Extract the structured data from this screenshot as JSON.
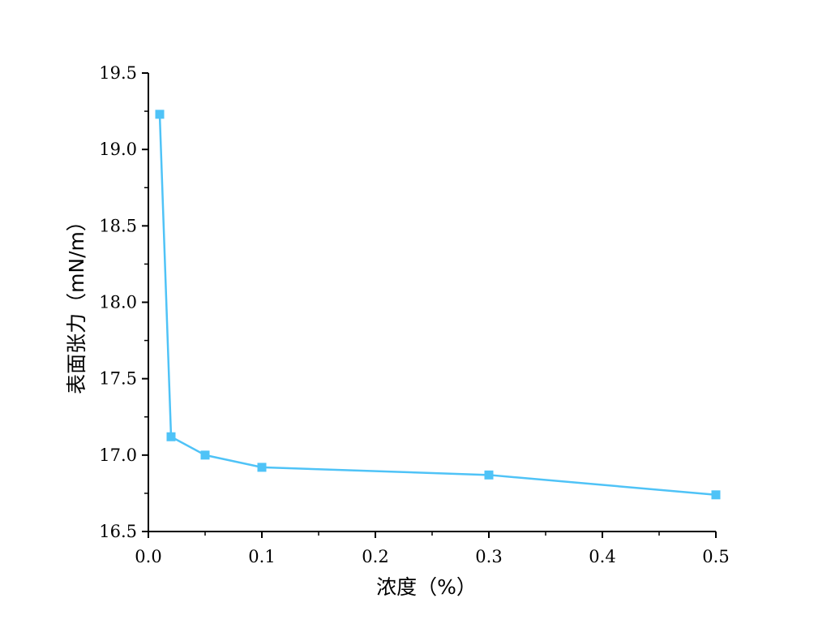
{
  "chart_data": {
    "type": "line",
    "xlabel": "浓度（%）",
    "ylabel": "表面张力（mN/m）",
    "xlim": [
      0.0,
      0.5
    ],
    "ylim": [
      16.5,
      19.5
    ],
    "x_ticks": [
      0.0,
      0.1,
      0.2,
      0.3,
      0.4,
      0.5
    ],
    "x_tick_labels": [
      "0.0",
      "0.1",
      "0.2",
      "0.3",
      "0.4",
      "0.5"
    ],
    "y_ticks": [
      16.5,
      17.0,
      17.5,
      18.0,
      18.5,
      19.0,
      19.5
    ],
    "y_tick_labels": [
      "16.5",
      "17.0",
      "17.5",
      "18.0",
      "18.5",
      "19.0",
      "19.5"
    ],
    "grid": false,
    "legend": "none",
    "series": [
      {
        "color": "#4fc3f7",
        "marker": "square",
        "x": [
          0.01,
          0.02,
          0.05,
          0.1,
          0.3,
          0.5
        ],
        "y": [
          19.23,
          17.12,
          17.0,
          16.92,
          16.87,
          16.74
        ]
      }
    ]
  }
}
